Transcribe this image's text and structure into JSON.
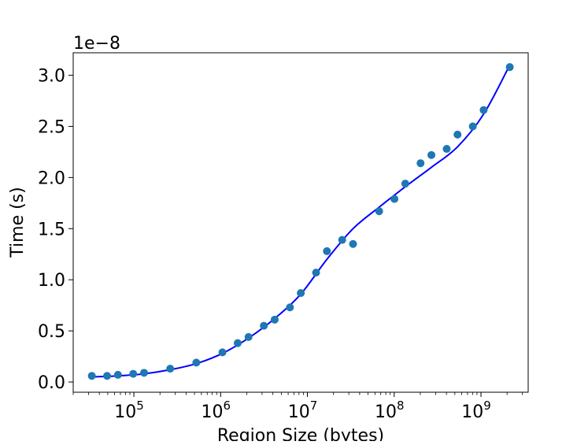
{
  "chart_data": {
    "type": "scatter",
    "xlabel": "Region Size (bytes)",
    "ylabel": "Time (s)",
    "offset_text": "1e−8",
    "xscale": "log",
    "xlim": [
      20000,
      3500000000
    ],
    "ylim": [
      -0.1,
      3.22
    ],
    "y_multiplier": 1e-08,
    "x_ticks": [
      {
        "value": 100000,
        "base": "10",
        "exp": "5"
      },
      {
        "value": 1000000,
        "base": "10",
        "exp": "6"
      },
      {
        "value": 10000000,
        "base": "10",
        "exp": "7"
      },
      {
        "value": 100000000,
        "base": "10",
        "exp": "8"
      },
      {
        "value": 1000000000,
        "base": "10",
        "exp": "9"
      }
    ],
    "y_ticks": [
      {
        "value": 0.0,
        "label": "0.0"
      },
      {
        "value": 0.5,
        "label": "0.5"
      },
      {
        "value": 1.0,
        "label": "1.0"
      },
      {
        "value": 1.5,
        "label": "1.5"
      },
      {
        "value": 2.0,
        "label": "2.0"
      },
      {
        "value": 2.5,
        "label": "2.5"
      },
      {
        "value": 3.0,
        "label": "3.0"
      }
    ],
    "colors": {
      "points": "#1f77b4",
      "fit": "#0000ff"
    },
    "series": [
      {
        "type": "scatter",
        "x": [
          32768,
          49152,
          65536,
          98304,
          131072,
          262144,
          524288,
          1048576,
          1572864,
          2097152,
          3145728,
          4194304,
          6291456,
          8388608,
          12582912,
          16777216,
          25165824,
          33554432,
          67108864,
          100663296,
          134217728,
          201326592,
          268435456,
          402653184,
          536870912,
          805306368,
          1073741824,
          2147483648
        ],
        "y": [
          0.06,
          0.06,
          0.07,
          0.08,
          0.09,
          0.13,
          0.19,
          0.29,
          0.38,
          0.44,
          0.55,
          0.61,
          0.73,
          0.87,
          1.07,
          1.28,
          1.39,
          1.35,
          1.67,
          1.79,
          1.94,
          2.14,
          2.22,
          2.28,
          2.42,
          2.5,
          2.66,
          3.08
        ]
      },
      {
        "type": "line",
        "x": [
          32768,
          65536,
          131072,
          262144,
          524288,
          1048576,
          2097152,
          4194304,
          8388608,
          16777216,
          33554432,
          67108864,
          134217728,
          268435456,
          536870912,
          1073741824,
          2147483648
        ],
        "y": [
          0.05,
          0.06,
          0.08,
          0.12,
          0.18,
          0.28,
          0.43,
          0.62,
          0.86,
          1.2,
          1.5,
          1.71,
          1.91,
          2.1,
          2.3,
          2.62,
          3.1
        ]
      }
    ]
  }
}
